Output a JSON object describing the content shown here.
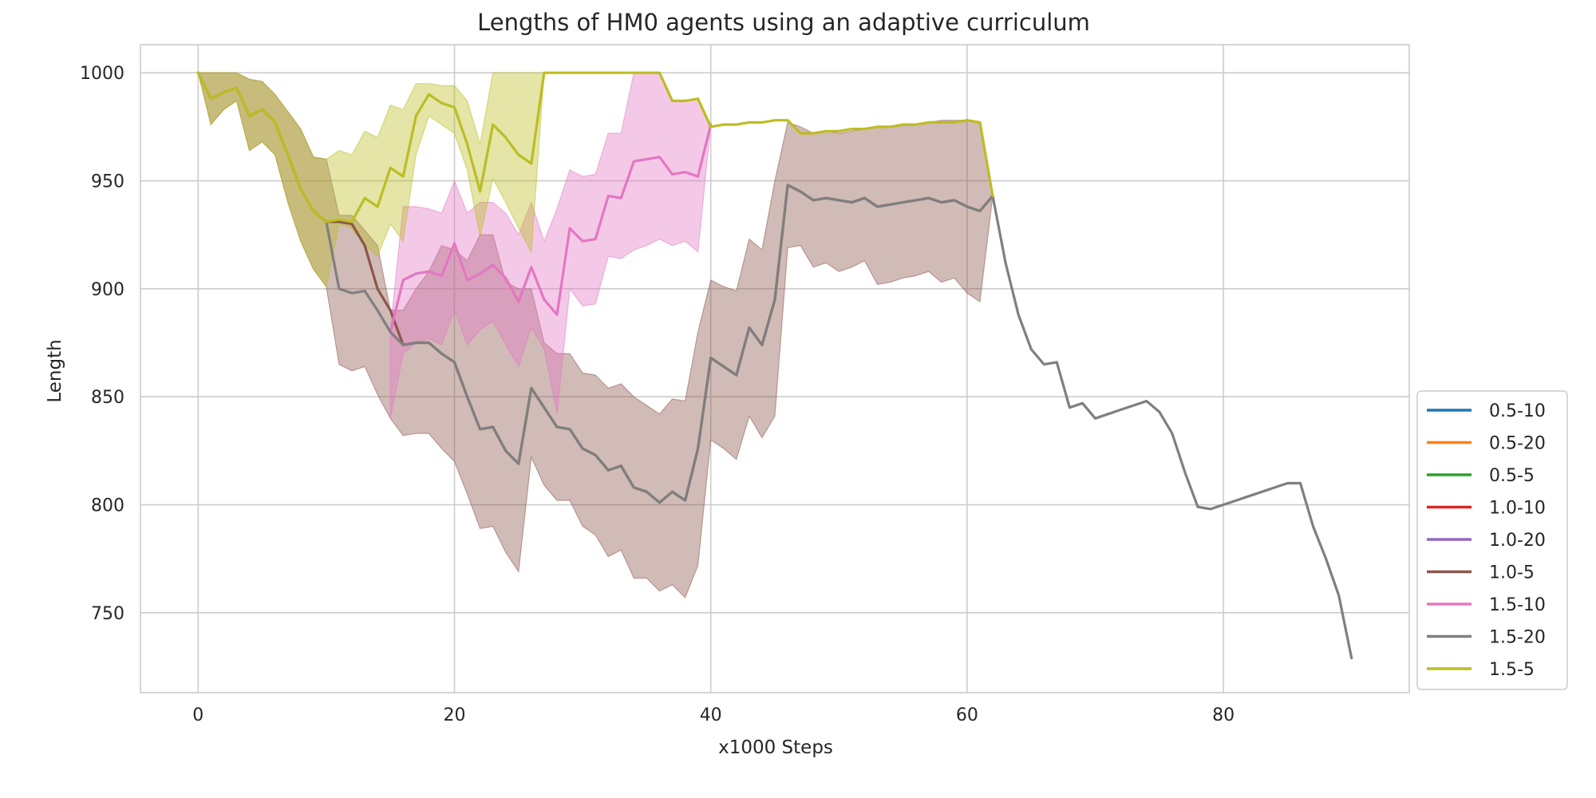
{
  "chart_data": {
    "type": "line",
    "title": "Lengths of HM0 agents using an adaptive curriculum",
    "xlabel": "x1000 Steps",
    "ylabel": "Length",
    "xlim": [
      -4.5,
      94.5
    ],
    "ylim": [
      713,
      1013
    ],
    "x_ticks": [
      0,
      20,
      40,
      60,
      80
    ],
    "y_ticks": [
      750,
      800,
      850,
      900,
      950,
      1000
    ],
    "grid": true,
    "legend_position": "lower-right outside",
    "series": [
      {
        "name": "0.5-10",
        "color": "#1f77b4",
        "x": [],
        "y": []
      },
      {
        "name": "0.5-20",
        "color": "#ff7f0e",
        "x": [],
        "y": []
      },
      {
        "name": "0.5-5",
        "color": "#2ca02c",
        "x": [],
        "y": []
      },
      {
        "name": "1.0-10",
        "color": "#d62728",
        "x": [],
        "y": []
      },
      {
        "name": "1.0-20",
        "color": "#9467bd",
        "x": [],
        "y": []
      },
      {
        "name": "1.0-5",
        "color": "#8c564b",
        "x": [
          0,
          1,
          2,
          3,
          4,
          5,
          6,
          7,
          8,
          9,
          10,
          11,
          12,
          13,
          14,
          15,
          16,
          17,
          18,
          19,
          20,
          21,
          22,
          23,
          24,
          25,
          26,
          27,
          28,
          29,
          30,
          31,
          32,
          33,
          34,
          35,
          36,
          37,
          38,
          39,
          40,
          41,
          42,
          43,
          44,
          45,
          46,
          47,
          48,
          49,
          50,
          51,
          52,
          53,
          54,
          55,
          56,
          57,
          58,
          59,
          60,
          61,
          62
        ],
        "y": [
          1000,
          988,
          991,
          993,
          980,
          983,
          977,
          962,
          946,
          936,
          931,
          931,
          930,
          920,
          900,
          890,
          874,
          875,
          875,
          870,
          866,
          850,
          835,
          836,
          825,
          819,
          854,
          845,
          836,
          835,
          826,
          823,
          816,
          818,
          808,
          806,
          801,
          806,
          802,
          826,
          868,
          864,
          860,
          882,
          874,
          895,
          948,
          945,
          941,
          942,
          941,
          940,
          942,
          938,
          939,
          940,
          941,
          942,
          940,
          941,
          938,
          936,
          943
        ],
        "lo": [
          1000,
          976,
          983,
          987,
          964,
          968,
          962,
          940,
          922,
          909,
          901,
          865,
          862,
          864,
          851,
          840,
          832,
          833,
          833,
          826,
          820,
          805,
          789,
          790,
          778,
          769,
          822,
          809,
          802,
          802,
          790,
          786,
          776,
          779,
          766,
          766,
          760,
          763,
          757,
          772,
          830,
          826,
          821,
          841,
          831,
          841,
          919,
          920,
          910,
          912,
          908,
          910,
          913,
          902,
          903,
          905,
          906,
          908,
          903,
          905,
          898,
          894,
          943
        ],
        "hi": [
          1000,
          1000,
          1000,
          1000,
          997,
          996,
          990,
          982,
          974,
          961,
          960,
          934,
          934,
          927,
          920,
          890,
          890,
          900,
          908,
          920,
          918,
          913,
          925,
          925,
          903,
          900,
          900,
          875,
          870,
          870,
          861,
          860,
          854,
          856,
          850,
          846,
          842,
          849,
          848,
          880,
          904,
          901,
          899,
          923,
          918,
          950,
          977,
          975,
          972,
          973,
          972,
          973,
          974,
          975,
          975,
          976,
          976,
          977,
          978,
          978,
          978,
          977,
          943
        ]
      },
      {
        "name": "1.5-10",
        "color": "#e377c2",
        "x": [
          15,
          16,
          17,
          18,
          19,
          20,
          21,
          22,
          23,
          24,
          25,
          26,
          27,
          28,
          29,
          30,
          31,
          32,
          33,
          34,
          35,
          36,
          37,
          38,
          39,
          40
        ],
        "y": [
          880,
          904,
          907,
          908,
          906,
          921,
          904,
          907,
          911,
          905,
          894,
          910,
          895,
          888,
          928,
          922,
          923,
          943,
          942,
          959,
          960,
          961,
          953,
          954,
          952,
          976
        ],
        "lo": [
          840,
          870,
          875,
          877,
          874,
          890,
          874,
          881,
          885,
          874,
          864,
          882,
          872,
          842,
          900,
          892,
          893,
          915,
          914,
          918,
          920,
          923,
          920,
          922,
          917,
          976
        ],
        "hi": [
          881,
          938,
          938,
          937,
          935,
          950,
          935,
          940,
          940,
          935,
          925,
          940,
          922,
          937,
          955,
          952,
          953,
          972,
          972,
          1000,
          1000,
          1000,
          987,
          987,
          988,
          976
        ]
      },
      {
        "name": "1.5-20",
        "color": "#7f7f7f",
        "x": [
          10,
          11,
          12,
          13,
          14,
          15,
          16,
          17,
          18,
          19,
          20,
          21,
          22,
          23,
          24,
          25,
          26,
          27,
          28,
          29,
          30,
          31,
          32,
          33,
          34,
          35,
          36,
          37,
          38,
          39,
          40,
          41,
          42,
          43,
          44,
          45,
          46,
          47,
          48,
          49,
          50,
          51,
          52,
          53,
          54,
          55,
          56,
          57,
          58,
          59,
          60,
          61,
          62,
          63,
          64,
          65,
          66,
          67,
          68,
          69,
          70,
          71,
          72,
          73,
          74,
          75,
          76,
          77,
          78,
          79,
          80,
          81,
          82,
          83,
          84,
          85,
          86,
          87,
          88,
          89,
          90
        ],
        "y": [
          931,
          900,
          898,
          899,
          890,
          880,
          874,
          875,
          875,
          870,
          866,
          850,
          835,
          836,
          825,
          819,
          854,
          845,
          836,
          835,
          826,
          823,
          816,
          818,
          808,
          806,
          801,
          806,
          802,
          826,
          868,
          864,
          860,
          882,
          874,
          895,
          948,
          945,
          941,
          942,
          941,
          940,
          942,
          938,
          939,
          940,
          941,
          942,
          940,
          941,
          938,
          936,
          943,
          912,
          888,
          872,
          865,
          866,
          845,
          847,
          840,
          842,
          844,
          846,
          848,
          843,
          833,
          815,
          799,
          798,
          800,
          802,
          804,
          806,
          808,
          810,
          810,
          790,
          775,
          758,
          729
        ]
      },
      {
        "name": "1.5-5",
        "color": "#bcbd22",
        "x": [
          0,
          1,
          2,
          3,
          4,
          5,
          6,
          7,
          8,
          9,
          10,
          11,
          12,
          13,
          14,
          15,
          16,
          17,
          18,
          19,
          20,
          21,
          22,
          23,
          24,
          25,
          26,
          27,
          28,
          29,
          30,
          31,
          32,
          33,
          34,
          35,
          36,
          37,
          38,
          39,
          40,
          41,
          42,
          43,
          44,
          45,
          46,
          47,
          48,
          49,
          50,
          51,
          52,
          53,
          54,
          55,
          56,
          57,
          58,
          59,
          60,
          61,
          62
        ],
        "y": [
          1000,
          988,
          991,
          993,
          980,
          983,
          977,
          962,
          946,
          936,
          931,
          932,
          931,
          942,
          938,
          956,
          952,
          980,
          990,
          986,
          984,
          967,
          945,
          976,
          970,
          962,
          958,
          1000,
          1000,
          1000,
          1000,
          1000,
          1000,
          1000,
          1000,
          1000,
          1000,
          987,
          987,
          988,
          975,
          976,
          976,
          977,
          977,
          978,
          978,
          972,
          972,
          973,
          973,
          974,
          974,
          975,
          975,
          976,
          976,
          977,
          977,
          977,
          978,
          977,
          943
        ],
        "lo": [
          1000,
          976,
          983,
          987,
          964,
          968,
          962,
          940,
          922,
          909,
          901,
          930,
          928,
          920,
          915,
          930,
          922,
          962,
          980,
          976,
          972,
          955,
          924,
          951,
          940,
          928,
          917,
          1000,
          1000,
          1000,
          1000,
          1000,
          1000,
          1000,
          1000,
          1000,
          1000,
          987,
          987,
          988,
          975,
          976,
          976,
          977,
          977,
          978,
          978,
          972,
          972,
          973,
          973,
          974,
          974,
          975,
          975,
          976,
          976,
          977,
          977,
          977,
          978,
          977,
          943
        ],
        "hi": [
          1000,
          1000,
          1000,
          1000,
          997,
          996,
          990,
          982,
          974,
          961,
          960,
          964,
          962,
          973,
          970,
          985,
          983,
          995,
          995,
          994,
          994,
          987,
          967,
          1000,
          1000,
          1000,
          1000,
          1000,
          1000,
          1000,
          1000,
          1000,
          1000,
          1000,
          1000,
          1000,
          1000,
          987,
          987,
          988,
          975,
          976,
          976,
          977,
          977,
          978,
          978,
          972,
          972,
          973,
          973,
          974,
          974,
          975,
          975,
          976,
          976,
          977,
          977,
          977,
          978,
          977,
          943
        ]
      }
    ]
  }
}
